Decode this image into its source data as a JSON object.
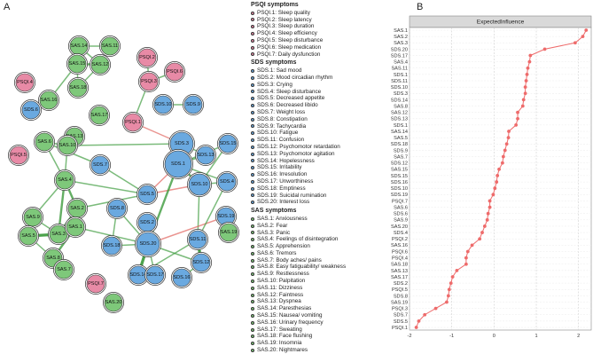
{
  "panel_letters": {
    "a": "A",
    "b": "B"
  },
  "legend": {
    "sections": [
      {
        "title": "PSQI symptoms",
        "color": "#e88aa6",
        "items": [
          "PSQI.1: Sleep quality",
          "PSQI.2: Sleep latency",
          "PSQI.3: Sleep duration",
          "PSQI.4: Sleep efficiency",
          "PSQI.5: Sleep disturbance",
          "PSQI.6: Sleep medication",
          "PSQI.7: Daily dysfunction"
        ]
      },
      {
        "title": "SDS symptoms",
        "color": "#6aa9e0",
        "items": [
          "SDS.1: Sad mood",
          "SDS.2: Mood circadian rhythm",
          "SDS.3: Crying",
          "SDS.4: Sleep disturbance",
          "SDS.5: Decreased appetite",
          "SDS.6: Decreased libido",
          "SDS.7: Weight loss",
          "SDS.8: Constipation",
          "SDS.9: Tachycardia",
          "SDS.10: Fatigue",
          "SDS.11: Confusion",
          "SDS.12: Psychomotor retardation",
          "SDS.13: Psychomotor agitation",
          "SDS.14: Hopelessness",
          "SDS.15: Irritability",
          "SDS.16: Irresolution",
          "SDS.17: Unworthiness",
          "SDS.18: Emptiness",
          "SDS.19: Suicidal rumination",
          "SDS.20: Interest loss"
        ]
      },
      {
        "title": "SAS symptoms",
        "color": "#7ec87a",
        "items": [
          "SAS.1: Anxiousness",
          "SAS.2: Fear",
          "SAS.3: Panic",
          "SAS.4: Feelings of disintegration",
          "SAS.5: Apprehension",
          "SAS.6: Tremors",
          "SAS.7: Body aches/ pains",
          "SAS.8: Easy fatiguability/ weakness",
          "SAS.9: Restlessness",
          "SAS.10: Palpitation",
          "SAS.11: Dizziness",
          "SAS.12: Faintness",
          "SAS.13: Dyspnea",
          "SAS.14: Paresthesias",
          "SAS.15: Nausea/ vomiting",
          "SAS.16: Urinary frequency",
          "SAS.17: Sweating",
          "SAS.18: Face flushing",
          "SAS.19: Insomnia",
          "SAS.20: Nightmares"
        ]
      }
    ]
  },
  "network": {
    "colors": {
      "psqi": "#e88aa6",
      "sds": "#6aa9e0",
      "sas": "#7ec87a",
      "pos_edge": "#3a9a3a",
      "neg_edge": "#e0605a"
    },
    "nodes": [
      {
        "id": "SAS.14",
        "group": "sas"
      },
      {
        "id": "SAS.11",
        "group": "sas"
      },
      {
        "id": "SAS.15",
        "group": "sas"
      },
      {
        "id": "SAS.12",
        "group": "sas"
      },
      {
        "id": "SAS.18",
        "group": "sas"
      },
      {
        "id": "SAS.16",
        "group": "sas"
      },
      {
        "id": "PSQI.2",
        "group": "psqi"
      },
      {
        "id": "PSQI.6",
        "group": "psqi"
      },
      {
        "id": "PSQI.3",
        "group": "psqi"
      },
      {
        "id": "PSQI.4",
        "group": "psqi"
      },
      {
        "id": "SDS.6",
        "group": "sds"
      },
      {
        "id": "SAS.17",
        "group": "sas"
      },
      {
        "id": "SDS.10",
        "group": "sds"
      },
      {
        "id": "SDS.9",
        "group": "sds"
      },
      {
        "id": "PSQI.1",
        "group": "psqi"
      },
      {
        "id": "SAS.13",
        "group": "sas"
      },
      {
        "id": "SAS.6",
        "group": "sas"
      },
      {
        "id": "SAS.10",
        "group": "sas"
      },
      {
        "id": "SDS.3",
        "group": "sds"
      },
      {
        "id": "SDS.15",
        "group": "sds"
      },
      {
        "id": "PSQI.5",
        "group": "psqi"
      },
      {
        "id": "SDS.1",
        "group": "sds"
      },
      {
        "id": "SDS.13",
        "group": "sds"
      },
      {
        "id": "SDS.7",
        "group": "sds"
      },
      {
        "id": "SAS.4",
        "group": "sas"
      },
      {
        "id": "SDS.10b",
        "group": "sds",
        "label": "SDS.10"
      },
      {
        "id": "SDS.4",
        "group": "sds"
      },
      {
        "id": "SAS.9",
        "group": "sas"
      },
      {
        "id": "SAS.2",
        "group": "sas"
      },
      {
        "id": "SDS.5",
        "group": "sds"
      },
      {
        "id": "SAS.5",
        "group": "sas"
      },
      {
        "id": "SAS.3",
        "group": "sas"
      },
      {
        "id": "SAS.1",
        "group": "sas"
      },
      {
        "id": "SDS.8",
        "group": "sds"
      },
      {
        "id": "SDS.19",
        "group": "sds"
      },
      {
        "id": "SAS.19",
        "group": "sas"
      },
      {
        "id": "SDS.2",
        "group": "sds"
      },
      {
        "id": "SDS.18",
        "group": "sds"
      },
      {
        "id": "SDS.20",
        "group": "sds"
      },
      {
        "id": "SAS.8",
        "group": "sas"
      },
      {
        "id": "SDS.11",
        "group": "sds"
      },
      {
        "id": "SAS.7",
        "group": "sas"
      },
      {
        "id": "SDS.14",
        "group": "sds"
      },
      {
        "id": "SDS.17",
        "group": "sds"
      },
      {
        "id": "SDS.12",
        "group": "sds"
      },
      {
        "id": "SDS.16",
        "group": "sds"
      },
      {
        "id": "PSQI.7",
        "group": "psqi"
      },
      {
        "id": "SAS.20",
        "group": "sas"
      }
    ],
    "edges": [
      {
        "a": "SAS.14",
        "b": "SAS.11",
        "w": 1,
        "sign": "pos"
      },
      {
        "a": "SAS.14",
        "b": "SAS.15",
        "w": 1,
        "sign": "pos"
      },
      {
        "a": "SAS.11",
        "b": "SAS.12",
        "w": 2,
        "sign": "pos"
      },
      {
        "a": "SAS.15",
        "b": "SAS.12",
        "w": 2,
        "sign": "pos"
      },
      {
        "a": "SAS.15",
        "b": "SAS.18",
        "w": 1,
        "sign": "pos"
      },
      {
        "a": "SAS.12",
        "b": "SAS.18",
        "w": 1,
        "sign": "pos"
      },
      {
        "a": "SAS.15",
        "b": "SAS.16",
        "w": 1,
        "sign": "pos"
      },
      {
        "a": "SAS.14",
        "b": "SAS.12",
        "w": 1,
        "sign": "pos"
      },
      {
        "a": "PSQI.2",
        "b": "PSQI.3",
        "w": 1,
        "sign": "pos"
      },
      {
        "a": "PSQI.3",
        "b": "PSQI.6",
        "w": 1,
        "sign": "pos"
      },
      {
        "a": "PSQI.3",
        "b": "PSQI.1",
        "w": 1,
        "sign": "pos"
      },
      {
        "a": "PSQI.1",
        "b": "SDS.3",
        "w": 1,
        "sign": "neg"
      },
      {
        "a": "SDS.3",
        "b": "SDS.1",
        "w": 3,
        "sign": "pos"
      },
      {
        "a": "SDS.3",
        "b": "SDS.13",
        "w": 1,
        "sign": "pos"
      },
      {
        "a": "SDS.1",
        "b": "SDS.13",
        "w": 1,
        "sign": "pos"
      },
      {
        "a": "SDS.1",
        "b": "SDS.10b",
        "w": 2,
        "sign": "pos"
      },
      {
        "a": "SDS.1",
        "b": "SDS.15",
        "w": 1,
        "sign": "pos"
      },
      {
        "a": "SDS.10",
        "b": "SDS.9",
        "w": 1,
        "sign": "pos"
      },
      {
        "a": "SDS.1",
        "b": "SDS.4",
        "w": 1,
        "sign": "pos"
      },
      {
        "a": "SDS.10b",
        "b": "SDS.4",
        "w": 1,
        "sign": "pos"
      },
      {
        "a": "SDS.1",
        "b": "SDS.5",
        "w": 1,
        "sign": "neg"
      },
      {
        "a": "SDS.5",
        "b": "SDS.10b",
        "w": 1,
        "sign": "neg"
      },
      {
        "a": "SDS.7",
        "b": "SDS.5",
        "w": 1,
        "sign": "pos"
      },
      {
        "a": "SDS.5",
        "b": "SAS.4",
        "w": 1,
        "sign": "pos"
      },
      {
        "a": "SDS.1",
        "b": "SDS.20",
        "w": 2,
        "sign": "pos"
      },
      {
        "a": "SDS.10b",
        "b": "SDS.11",
        "w": 1,
        "sign": "pos"
      },
      {
        "a": "SDS.20",
        "b": "SDS.8",
        "w": 1,
        "sign": "pos"
      },
      {
        "a": "SDS.20",
        "b": "SDS.18",
        "w": 1,
        "sign": "pos"
      },
      {
        "a": "SDS.20",
        "b": "SDS.14",
        "w": 3,
        "sign": "pos"
      },
      {
        "a": "SDS.20",
        "b": "SDS.17",
        "w": 1,
        "sign": "pos"
      },
      {
        "a": "SDS.20",
        "b": "SDS.12",
        "w": 1,
        "sign": "pos"
      },
      {
        "a": "SDS.14",
        "b": "SDS.17",
        "w": 2,
        "sign": "pos"
      },
      {
        "a": "SDS.11",
        "b": "SDS.12",
        "w": 3,
        "sign": "pos"
      },
      {
        "a": "SDS.12",
        "b": "SDS.16",
        "w": 1,
        "sign": "pos"
      },
      {
        "a": "SDS.11",
        "b": "SDS.14",
        "w": 1,
        "sign": "pos"
      },
      {
        "a": "SDS.19",
        "b": "SDS.20",
        "w": 1,
        "sign": "neg"
      },
      {
        "a": "SDS.2",
        "b": "SDS.20",
        "w": 1,
        "sign": "pos"
      },
      {
        "a": "SDS.8",
        "b": "SDS.18",
        "w": 1,
        "sign": "pos"
      },
      {
        "a": "SAS.6",
        "b": "SAS.10",
        "w": 1,
        "sign": "pos"
      },
      {
        "a": "SAS.6",
        "b": "SAS.4",
        "w": 1,
        "sign": "pos"
      },
      {
        "a": "SAS.10",
        "b": "SAS.4",
        "w": 1,
        "sign": "pos"
      },
      {
        "a": "SAS.4",
        "b": "SAS.2",
        "w": 2,
        "sign": "pos"
      },
      {
        "a": "SAS.4",
        "b": "SAS.3",
        "w": 2,
        "sign": "pos"
      },
      {
        "a": "SAS.4",
        "b": "SAS.9",
        "w": 1,
        "sign": "pos"
      },
      {
        "a": "SAS.9",
        "b": "SAS.5",
        "w": 3,
        "sign": "pos"
      },
      {
        "a": "SAS.9",
        "b": "SAS.3",
        "w": 1,
        "sign": "pos"
      },
      {
        "a": "SAS.5",
        "b": "SAS.3",
        "w": 3,
        "sign": "pos"
      },
      {
        "a": "SAS.3",
        "b": "SAS.2",
        "w": 2,
        "sign": "pos"
      },
      {
        "a": "SAS.3",
        "b": "SAS.1",
        "w": 3,
        "sign": "pos"
      },
      {
        "a": "SAS.2",
        "b": "SAS.1",
        "w": 2,
        "sign": "pos"
      },
      {
        "a": "SAS.1",
        "b": "SAS.8",
        "w": 2,
        "sign": "pos"
      },
      {
        "a": "SAS.8",
        "b": "SAS.7",
        "w": 1,
        "sign": "pos"
      },
      {
        "a": "SAS.5",
        "b": "SAS.8",
        "w": 1,
        "sign": "pos"
      },
      {
        "a": "SAS.1",
        "b": "SDS.20",
        "w": 1,
        "sign": "pos"
      },
      {
        "a": "SAS.2",
        "b": "SDS.5",
        "w": 1,
        "sign": "pos"
      },
      {
        "a": "SAS.6",
        "b": "SDS.7",
        "w": 1,
        "sign": "pos"
      },
      {
        "a": "SDS.3",
        "b": "SAS.10",
        "w": 1,
        "sign": "pos"
      },
      {
        "a": "SDS.15",
        "b": "SDS.10b",
        "w": 1,
        "sign": "pos"
      },
      {
        "a": "SDS.4",
        "b": "SDS.11",
        "w": 1,
        "sign": "pos"
      }
    ]
  },
  "chart_data": {
    "type": "line",
    "title": "ExpectedInfluence",
    "xlabel": "",
    "ylabel": "",
    "xlim": [
      -2,
      2.3
    ],
    "xticks": [
      -2,
      -1,
      0,
      1,
      2
    ],
    "grid": true,
    "categories": [
      "SAS.1",
      "SAS.2",
      "SAS.3",
      "SDS.20",
      "SDS.17",
      "SAS.4",
      "SAS.11",
      "SDS.1",
      "SDS.11",
      "SDS.10",
      "SDS.3",
      "SDS.14",
      "SAS.8",
      "SAS.12",
      "SDS.13",
      "SDS.1",
      "SAS.14",
      "SAS.5",
      "SDS.18",
      "SDS.9",
      "SAS.7",
      "SDS.12",
      "SAS.15",
      "SDS.15",
      "SDS.16",
      "SDS.10",
      "SDS.19",
      "PSQI.7",
      "SAS.6",
      "SDS.6",
      "SAS.9",
      "SAS.20",
      "SDS.4",
      "PSQI.2",
      "SAS.16",
      "PSQI.6",
      "PSQI.4",
      "SAS.18",
      "SAS.13",
      "SAS.17",
      "SDS.2",
      "PSQI.5",
      "SDS.8",
      "SAS.19",
      "PSQI.3",
      "SDS.7",
      "SDS.5",
      "PSQI.1"
    ],
    "values": [
      2.18,
      2.1,
      1.92,
      1.2,
      0.86,
      0.84,
      0.8,
      0.78,
      0.76,
      0.74,
      0.74,
      0.7,
      0.68,
      0.56,
      0.56,
      0.52,
      0.35,
      0.34,
      0.3,
      0.26,
      0.22,
      0.2,
      0.12,
      0.08,
      0.06,
      0.02,
      -0.02,
      -0.1,
      -0.1,
      -0.14,
      -0.16,
      -0.22,
      -0.28,
      -0.34,
      -0.52,
      -0.62,
      -0.66,
      -0.66,
      -0.88,
      -0.98,
      -1.02,
      -1.06,
      -1.08,
      -1.12,
      -1.38,
      -1.64,
      -1.78,
      -1.84
    ]
  }
}
